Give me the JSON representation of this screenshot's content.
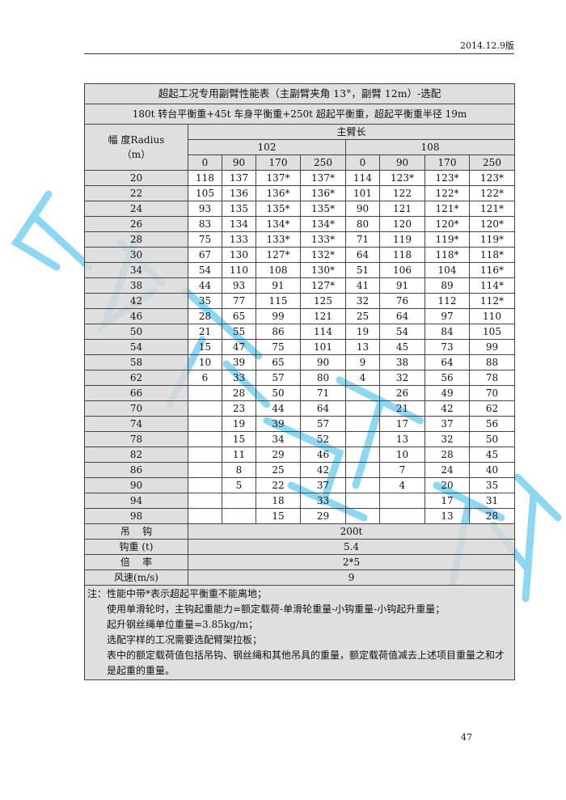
{
  "header": {
    "edition": "2014.12.9版"
  },
  "table": {
    "title": "超起工况专用副臂性能表（主副臂夹角 13°，副臂 12m）-选配",
    "subtitle": "180t 转台平衡重+45t 车身平衡重+250t 超起平衡重，超起平衡重半径 19m",
    "radius_header": "幅  度Radius（m）",
    "main_boom_header": "主臂长",
    "boom_lengths": [
      "102",
      "108"
    ],
    "counterweights": [
      "0",
      "90",
      "170",
      "250",
      "0",
      "90",
      "170",
      "250"
    ],
    "rows": [
      {
        "r": "20",
        "v": [
          "118",
          "137",
          "137*",
          "137*",
          "114",
          "123*",
          "123*",
          "123*"
        ]
      },
      {
        "r": "22",
        "v": [
          "105",
          "136",
          "136*",
          "136*",
          "101",
          "122",
          "122*",
          "122*"
        ]
      },
      {
        "r": "24",
        "v": [
          "93",
          "135",
          "135*",
          "135*",
          "90",
          "121",
          "121*",
          "121*"
        ]
      },
      {
        "r": "26",
        "v": [
          "83",
          "134",
          "134*",
          "134*",
          "80",
          "120",
          "120*",
          "120*"
        ]
      },
      {
        "r": "28",
        "v": [
          "75",
          "133",
          "133*",
          "133*",
          "71",
          "119",
          "119*",
          "119*"
        ]
      },
      {
        "r": "30",
        "v": [
          "67",
          "130",
          "127*",
          "132*",
          "64",
          "118",
          "118*",
          "118*"
        ]
      },
      {
        "r": "34",
        "v": [
          "54",
          "110",
          "108",
          "130*",
          "51",
          "106",
          "104",
          "116*"
        ]
      },
      {
        "r": "38",
        "v": [
          "44",
          "93",
          "91",
          "127*",
          "41",
          "91",
          "89",
          "114*"
        ]
      },
      {
        "r": "42",
        "v": [
          "35",
          "77",
          "115",
          "125",
          "32",
          "76",
          "112",
          "112*"
        ]
      },
      {
        "r": "46",
        "v": [
          "28",
          "65",
          "99",
          "121",
          "25",
          "64",
          "97",
          "110"
        ]
      },
      {
        "r": "50",
        "v": [
          "21",
          "55",
          "86",
          "114",
          "19",
          "54",
          "84",
          "105"
        ]
      },
      {
        "r": "54",
        "v": [
          "15",
          "47",
          "75",
          "101",
          "13",
          "45",
          "73",
          "99"
        ]
      },
      {
        "r": "58",
        "v": [
          "10",
          "39",
          "65",
          "90",
          "9",
          "38",
          "64",
          "88"
        ]
      },
      {
        "r": "62",
        "v": [
          "6",
          "33",
          "57",
          "80",
          "4",
          "32",
          "56",
          "78"
        ]
      },
      {
        "r": "66",
        "v": [
          "",
          "28",
          "50",
          "71",
          "",
          "26",
          "49",
          "70"
        ]
      },
      {
        "r": "70",
        "v": [
          "",
          "23",
          "44",
          "64",
          "",
          "21",
          "42",
          "62"
        ]
      },
      {
        "r": "74",
        "v": [
          "",
          "19",
          "39",
          "57",
          "",
          "17",
          "37",
          "56"
        ]
      },
      {
        "r": "78",
        "v": [
          "",
          "15",
          "34",
          "52",
          "",
          "13",
          "32",
          "50"
        ]
      },
      {
        "r": "82",
        "v": [
          "",
          "11",
          "29",
          "46",
          "",
          "10",
          "28",
          "45"
        ]
      },
      {
        "r": "86",
        "v": [
          "",
          "8",
          "25",
          "42",
          "",
          "7",
          "24",
          "40"
        ]
      },
      {
        "r": "90",
        "v": [
          "",
          "5",
          "22",
          "37",
          "",
          "4",
          "20",
          "35"
        ]
      },
      {
        "r": "94",
        "v": [
          "",
          "",
          "18",
          "33",
          "",
          "",
          "17",
          "31"
        ]
      },
      {
        "r": "98",
        "v": [
          "",
          "",
          "15",
          "29",
          "",
          "",
          "13",
          "28"
        ]
      }
    ],
    "footer": [
      {
        "label": "吊    钩",
        "value": "200t"
      },
      {
        "label": "钩重 (t)",
        "value": "5.4"
      },
      {
        "label": "倍    率",
        "value": "2*5"
      },
      {
        "label": "风速(m/s)",
        "value": "9"
      }
    ],
    "notes": [
      "注：性能中带*表示超起平衡重不能离地；",
      "使用单滑轮时，主钩起重能力=额定载荷-单滑轮重量-小钩重量-小钩起升重量；",
      "起升钢丝绳单位重量=3.85kg/m；",
      "选配字样的工况需要选配臂架拉板；",
      "表中的额定载荷值包括吊钩、钢丝绳和其他吊具的重量，额定载荷值减去上述项目重量之和才是起重的重量。"
    ]
  },
  "watermark": "成都广聚吊装",
  "page_number": "47"
}
